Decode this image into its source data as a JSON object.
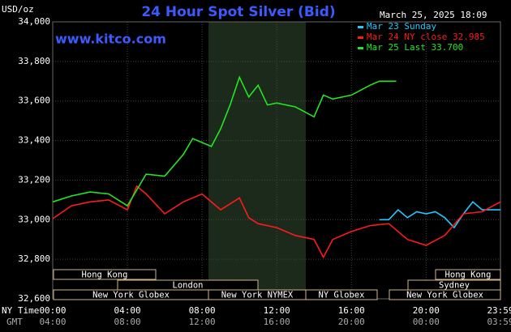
{
  "chart_data": {
    "type": "line",
    "title": "24 Hour Spot Silver (Bid)",
    "unit": "USD/oz",
    "timestamp": "March 25, 2025 18:09",
    "source": "www.kitco.com",
    "x_axis_names": [
      "NY Time",
      "GMT"
    ],
    "xlim": [
      0,
      23.983
    ],
    "xticks": [
      {
        "value": 0,
        "label": "00:00"
      },
      {
        "value": 4,
        "label": "04:00"
      },
      {
        "value": 8,
        "label": "08:00"
      },
      {
        "value": 12,
        "label": "12:00"
      },
      {
        "value": 16,
        "label": "16:00"
      },
      {
        "value": 20,
        "label": "20:00"
      },
      {
        "value": 23.983,
        "label": "23:59"
      }
    ],
    "gmt_tick_labels": [
      "04:00",
      "08:00",
      "12:00",
      "16:00",
      "20:00",
      "00:00",
      "03:59"
    ],
    "ylim": [
      32.6,
      34.0
    ],
    "yticks": [
      {
        "value": 32.6,
        "label": "32,600"
      },
      {
        "value": 32.8,
        "label": "32,800"
      },
      {
        "value": 33.0,
        "label": "33,000"
      },
      {
        "value": 33.2,
        "label": "33,200"
      },
      {
        "value": 33.4,
        "label": "33,400"
      },
      {
        "value": 33.6,
        "label": "33,600"
      },
      {
        "value": 33.8,
        "label": "33,800"
      },
      {
        "value": 34.0,
        "label": "34,000"
      }
    ],
    "grid": true,
    "sessions": [
      "Hong Kong",
      "London",
      "New York Globex",
      "New York NYMEX",
      "NY Globex",
      "Hong Kong",
      "Sydney",
      "New York Globex"
    ],
    "series": [
      {
        "name": "Mar 23 Sunday",
        "color": "#22c8ff",
        "x": [
          17.5,
          18,
          18.5,
          19,
          19.5,
          20,
          20.5,
          21,
          21.5,
          22,
          22.5,
          23,
          23.983
        ],
        "values": [
          33.0,
          33.0,
          33.05,
          33.01,
          33.04,
          33.03,
          33.04,
          33.01,
          32.96,
          33.03,
          33.09,
          33.05,
          33.05
        ]
      },
      {
        "name": "Mar 24 NY close 32.985",
        "color": "#ff1a1a",
        "x": [
          0,
          1,
          2,
          3,
          4,
          4.5,
          5,
          6,
          7,
          8,
          9,
          10,
          10.5,
          11,
          12,
          13,
          14,
          14.5,
          15,
          16,
          17,
          18,
          19,
          20,
          21,
          22,
          23,
          23.983
        ],
        "values": [
          33.005,
          33.07,
          33.09,
          33.1,
          33.05,
          33.17,
          33.13,
          33.03,
          33.09,
          33.13,
          33.05,
          33.11,
          33.01,
          32.98,
          32.96,
          32.92,
          32.9,
          32.81,
          32.9,
          32.94,
          32.97,
          32.98,
          32.9,
          32.87,
          32.92,
          33.03,
          33.04,
          33.09
        ]
      },
      {
        "name": "Mar 25 Last 33.700",
        "color": "#22e622",
        "x": [
          0,
          1,
          2,
          3,
          4,
          4.5,
          5,
          6,
          7,
          7.5,
          8,
          8.5,
          9,
          9.5,
          10,
          10.5,
          11,
          11.5,
          12,
          13,
          14,
          14.5,
          15,
          16,
          17,
          17.5,
          18.4
        ],
        "values": [
          33.09,
          33.12,
          33.14,
          33.13,
          33.07,
          33.15,
          33.23,
          33.22,
          33.33,
          33.41,
          33.39,
          33.37,
          33.46,
          33.58,
          33.72,
          33.62,
          33.68,
          33.58,
          33.59,
          33.57,
          33.52,
          33.63,
          33.61,
          33.63,
          33.68,
          33.7,
          33.7
        ]
      }
    ]
  }
}
